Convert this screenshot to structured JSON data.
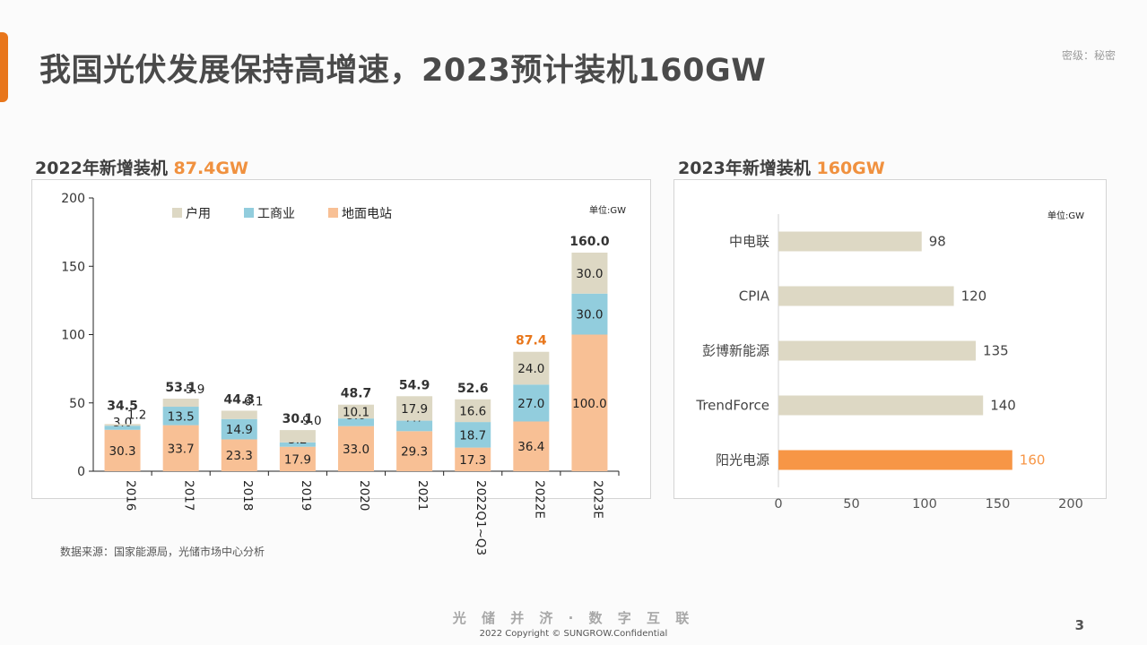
{
  "header": {
    "title": "我国光伏发展保持高增速，2023预计装机160GW",
    "classification": "密级：秘密",
    "accent_color": "#e8761b"
  },
  "left_section": {
    "title": "2022年新增装机",
    "highlight": "87.4GW"
  },
  "right_section": {
    "title": "2023年新增装机",
    "highlight": "160GW"
  },
  "source_note": "数据来源：国家能源局，光储市场中心分析",
  "footer": {
    "slogan": "光 储 并 济 · 数 字 互 联",
    "copyright": "2022 Copyright © SUNGROW.Confidential",
    "page_number": "3"
  },
  "chart_data": [
    {
      "type": "bar",
      "stacked": true,
      "unit_label": "单位:GW",
      "categories": [
        "2016",
        "2017",
        "2018",
        "2019",
        "2020",
        "2021",
        "2022Q1~Q3",
        "2022E",
        "2023E"
      ],
      "series": [
        {
          "name": "地面电站",
          "color": "#f8c095",
          "values": [
            30.3,
            33.7,
            23.3,
            17.9,
            33.0,
            29.3,
            17.3,
            36.4,
            100.0
          ]
        },
        {
          "name": "工商业",
          "color": "#92cddd",
          "values": [
            3.0,
            13.5,
            14.9,
            3.2,
            5.6,
            7.7,
            18.7,
            27.0,
            30.0
          ]
        },
        {
          "name": "户用",
          "color": "#ddd8c4",
          "values": [
            1.2,
            5.9,
            6.1,
            9.0,
            10.1,
            17.9,
            16.6,
            24.0,
            30.0
          ]
        }
      ],
      "totals": [
        "34.5",
        "53.1",
        "44.3",
        "30.1",
        "48.7",
        "54.9",
        "52.6",
        "87.4",
        "160.0"
      ],
      "highlight_total_index": 7,
      "highlight_color": "#e8761b",
      "ylim": [
        0,
        200
      ],
      "yticks": [
        0,
        50,
        100,
        150,
        200
      ],
      "legend_position": "top"
    },
    {
      "type": "bar",
      "orientation": "horizontal",
      "unit_label": "单位:GW",
      "categories": [
        "中电联",
        "CPIA",
        "彭博新能源",
        "TrendForce",
        "阳光电源"
      ],
      "values": [
        98,
        120,
        135,
        140,
        160
      ],
      "bar_color": "#ddd8c4",
      "highlight_index": 4,
      "highlight_color": "#f79646",
      "xlim": [
        0,
        200
      ],
      "xticks": [
        0,
        50,
        100,
        150,
        200
      ]
    }
  ]
}
